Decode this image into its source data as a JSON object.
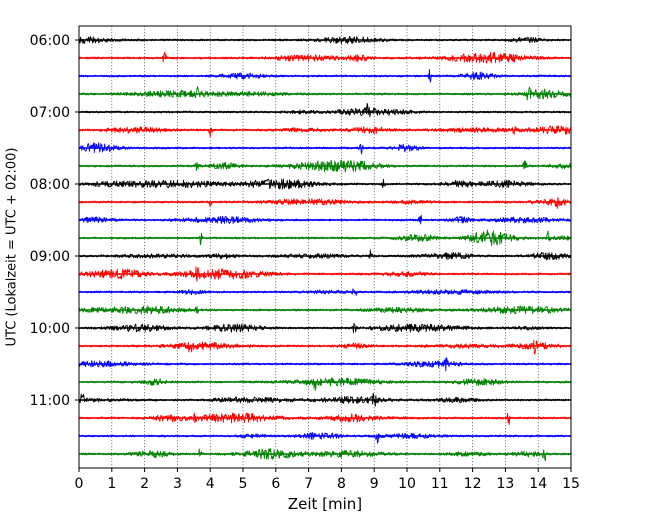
{
  "chart_data": {
    "type": "line",
    "title": "",
    "xlabel": "Zeit  [min]",
    "ylabel": "UTC (Lokalzeit = UTC + 02:00)",
    "xlim": [
      0,
      15
    ],
    "x_ticks": [
      "0",
      "1",
      "2",
      "3",
      "4",
      "5",
      "6",
      "7",
      "8",
      "9",
      "10",
      "11",
      "12",
      "13",
      "14",
      "15"
    ],
    "vertical_grid": true,
    "row_interval_minutes": 15,
    "y_ticks": [
      "06:00",
      "07:00",
      "08:00",
      "09:00",
      "10:00",
      "11:00"
    ],
    "color_cycle": [
      "#000000",
      "#ff0000",
      "#0000ff",
      "#008000"
    ],
    "traces": [
      {
        "start": "06:00",
        "color": "#000000",
        "events": []
      },
      {
        "start": "06:15",
        "color": "#ff0000",
        "events": [
          2.6
        ]
      },
      {
        "start": "06:30",
        "color": "#0000ff",
        "events": [
          10.7
        ]
      },
      {
        "start": "06:45",
        "color": "#008000",
        "events": [
          3.6,
          13.7
        ]
      },
      {
        "start": "07:00",
        "color": "#000000",
        "events": [
          8.8
        ]
      },
      {
        "start": "07:15",
        "color": "#ff0000",
        "events": [
          4.0,
          13.3
        ]
      },
      {
        "start": "07:30",
        "color": "#0000ff",
        "events": [
          8.6
        ]
      },
      {
        "start": "07:45",
        "color": "#008000",
        "events": [
          3.6,
          13.6
        ]
      },
      {
        "start": "08:00",
        "color": "#000000",
        "events": [
          9.3
        ]
      },
      {
        "start": "08:15",
        "color": "#ff0000",
        "events": [
          4.0,
          14.6
        ]
      },
      {
        "start": "08:30",
        "color": "#0000ff",
        "events": [
          10.4
        ]
      },
      {
        "start": "08:45",
        "color": "#008000",
        "events": [
          3.7,
          14.3
        ]
      },
      {
        "start": "09:00",
        "color": "#000000",
        "events": [
          8.9
        ]
      },
      {
        "start": "09:15",
        "color": "#ff0000",
        "events": [
          3.6
        ]
      },
      {
        "start": "09:30",
        "color": "#0000ff",
        "events": [
          8.4
        ]
      },
      {
        "start": "09:45",
        "color": "#008000",
        "events": [
          3.6,
          14.3
        ]
      },
      {
        "start": "10:00",
        "color": "#000000",
        "events": [
          8.4
        ]
      },
      {
        "start": "10:15",
        "color": "#ff0000",
        "events": [
          3.4,
          13.9
        ]
      },
      {
        "start": "10:30",
        "color": "#0000ff",
        "events": [
          11.2
        ]
      },
      {
        "start": "10:45",
        "color": "#008000",
        "events": [
          7.2
        ]
      },
      {
        "start": "11:00",
        "color": "#000000",
        "events": [
          0.1,
          9.0
        ]
      },
      {
        "start": "11:15",
        "color": "#ff0000",
        "events": [
          3.5,
          13.1
        ]
      },
      {
        "start": "11:30",
        "color": "#0000ff",
        "events": [
          9.1
        ]
      },
      {
        "start": "11:45",
        "color": "#008000",
        "events": [
          3.7,
          14.2
        ]
      }
    ]
  }
}
